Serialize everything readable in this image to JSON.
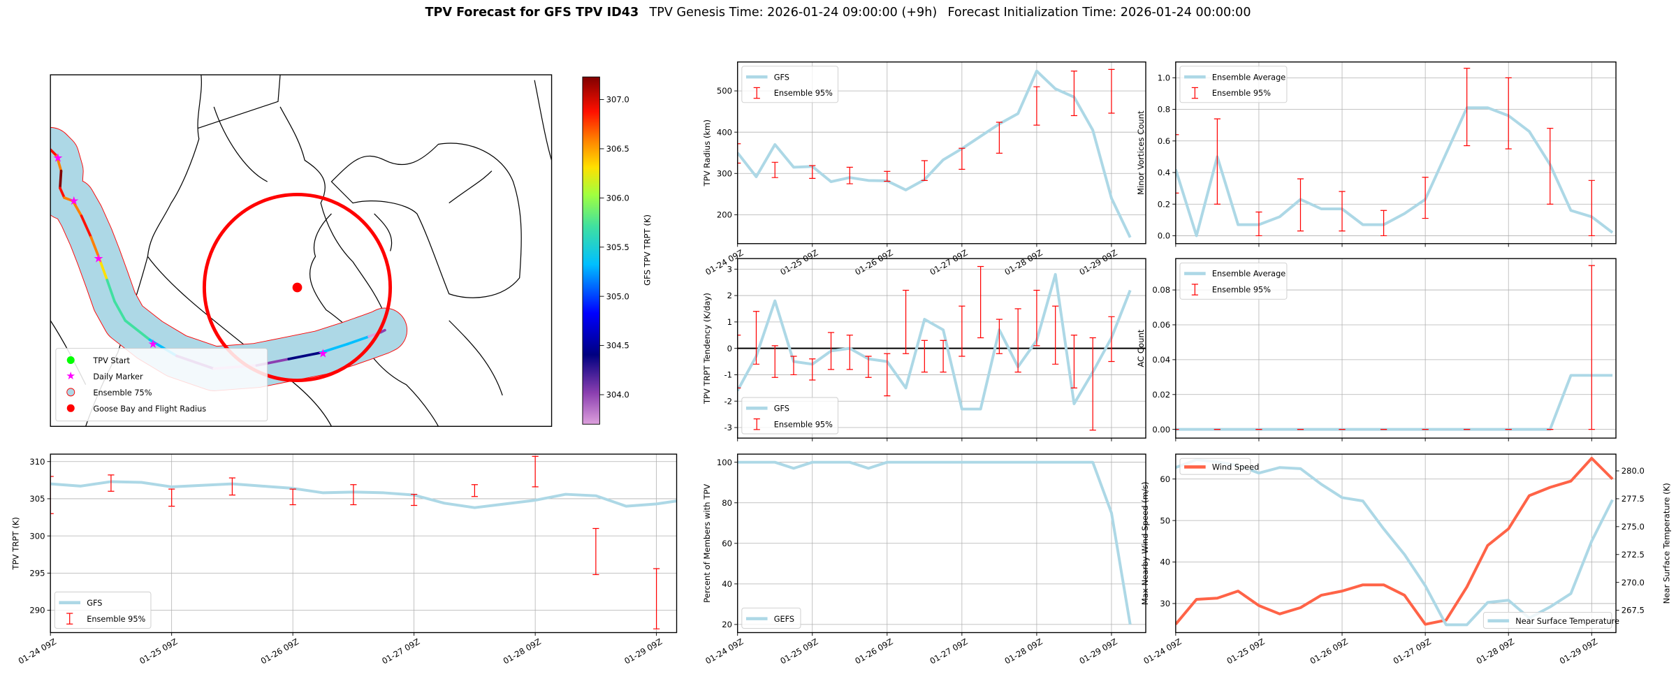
{
  "title": {
    "bold": "TPV Forecast for GFS TPV ID43",
    "genesis": "TPV Genesis Time: 2026-01-24 09:00:00 (+9h)",
    "init": "Forecast Initialization Time: 2026-01-24 00:00:00"
  },
  "map": {
    "legend": [
      "TPV Start",
      "Daily Marker",
      "Ensemble 75%",
      "Goose Bay and Flight Radius"
    ],
    "colorbar": {
      "label": "GFS TPV TRPT (K)",
      "range": [
        303.7,
        307.23
      ],
      "ticks": [
        "304.0",
        "304.5",
        "305.0",
        "305.5",
        "306.0",
        "306.5",
        "307.0"
      ]
    }
  },
  "colors": {
    "gfs": "#add8e6",
    "ens": "#ff0000",
    "wind": "#ff6347",
    "temp_axis": "#4169e1"
  },
  "chart_data": [
    {
      "id": "radius",
      "type": "line",
      "ylabel": "TPV Radius (km)",
      "ylim": [
        130,
        570
      ],
      "yticks": [
        200,
        300,
        400,
        500
      ],
      "x_hours": [
        0,
        6,
        12,
        18,
        24,
        30,
        36,
        42,
        48,
        54,
        60,
        66,
        72,
        78,
        84,
        90,
        96,
        102,
        108,
        114,
        120,
        126
      ],
      "xticks": [
        0,
        24,
        48,
        72,
        96,
        120
      ],
      "xticklabels": [
        "01-24 09Z",
        "01-25 09Z",
        "01-26 09Z",
        "01-27 09Z",
        "01-28 09Z",
        "01-29 09Z"
      ],
      "series": [
        {
          "name": "GFS",
          "values": [
            350,
            292,
            370,
            315,
            317,
            280,
            290,
            283,
            282,
            260,
            285,
            333,
            360,
            390,
            420,
            445,
            548,
            505,
            485,
            405,
            240,
            145
          ]
        }
      ],
      "errorbars": {
        "name": "Ensemble 95%",
        "x": [
          0,
          12,
          24,
          36,
          48,
          60,
          72,
          84,
          96,
          108,
          120
        ],
        "low": [
          325,
          290,
          288,
          275,
          281,
          283,
          310,
          349,
          417,
          440,
          446
        ],
        "high": [
          372,
          327,
          319,
          315,
          305,
          331,
          361,
          424,
          510,
          548,
          552
        ]
      },
      "legend_loc": "upper-left"
    },
    {
      "id": "tendency",
      "type": "line",
      "ylabel": "TPV TRPT Tendency (K/day)",
      "ylim": [
        -3.4,
        3.4
      ],
      "yticks": [
        -3,
        -2,
        -1,
        0,
        1,
        2,
        3
      ],
      "hline": 0,
      "x_hours": [
        0,
        6,
        12,
        18,
        24,
        30,
        36,
        42,
        48,
        54,
        60,
        66,
        72,
        78,
        84,
        90,
        96,
        102,
        108,
        114,
        120,
        126
      ],
      "series": [
        {
          "name": "GFS",
          "values": [
            -1.6,
            -0.3,
            1.8,
            -0.5,
            -0.6,
            -0.1,
            0,
            -0.4,
            -0.5,
            -1.5,
            1.1,
            0.7,
            -2.3,
            -2.3,
            0.7,
            -0.7,
            0.3,
            2.8,
            -2.1,
            -0.9,
            0.4,
            2.2
          ]
        }
      ],
      "errorbars": {
        "name": "Ensemble 95%",
        "x": [
          0,
          6,
          12,
          18,
          24,
          30,
          36,
          42,
          48,
          54,
          60,
          66,
          72,
          78,
          84,
          90,
          96,
          102,
          108,
          114,
          120
        ],
        "low": [
          -1.5,
          -0.6,
          -1.1,
          -1.0,
          -1.2,
          -0.8,
          -0.8,
          -1.1,
          -1.8,
          -0.2,
          -0.9,
          -0.9,
          -0.3,
          0.4,
          -0.2,
          -0.9,
          0.1,
          -0.6,
          -1.5,
          -3.1,
          -0.5
        ],
        "high": [
          0.5,
          1.4,
          0.1,
          -0.3,
          -0.4,
          0.6,
          0.5,
          -0.3,
          -0.2,
          2.2,
          0.3,
          0.3,
          1.6,
          3.1,
          1.1,
          1.5,
          2.2,
          1.6,
          0.5,
          0.4,
          1.2
        ]
      },
      "legend_loc": "lower-left"
    },
    {
      "id": "percent",
      "type": "line",
      "ylabel": "Percent of Members with TPV",
      "ylim": [
        16,
        104
      ],
      "yticks": [
        20,
        40,
        60,
        80,
        100
      ],
      "x_hours": [
        0,
        6,
        12,
        18,
        24,
        30,
        36,
        42,
        48,
        54,
        60,
        66,
        72,
        78,
        84,
        90,
        96,
        102,
        108,
        114,
        120,
        126
      ],
      "xticks": [
        0,
        24,
        48,
        72,
        96,
        120
      ],
      "xticklabels": [
        "01-24 09Z",
        "01-25 09Z",
        "01-26 09Z",
        "01-27 09Z",
        "01-28 09Z",
        "01-29 09Z"
      ],
      "series": [
        {
          "name": "GEFS",
          "values": [
            100,
            100,
            100,
            97,
            100,
            100,
            100,
            97,
            100,
            100,
            100,
            100,
            100,
            100,
            100,
            100,
            100,
            100,
            100,
            100,
            75,
            20
          ]
        }
      ],
      "legend_loc": "lower-left"
    },
    {
      "id": "trpt",
      "type": "line",
      "ylabel": "TPV TRPT (K)",
      "ylim": [
        287,
        311
      ],
      "yticks": [
        290,
        295,
        300,
        305,
        310
      ],
      "x_hours": [
        0,
        6,
        12,
        18,
        24,
        30,
        36,
        42,
        48,
        54,
        60,
        66,
        72,
        78,
        84,
        90,
        96,
        102,
        108,
        114,
        120,
        126
      ],
      "xticks": [
        0,
        24,
        48,
        72,
        96,
        120
      ],
      "xticklabels": [
        "01-24 09Z",
        "01-25 09Z",
        "01-26 09Z",
        "01-27 09Z",
        "01-28 09Z",
        "01-29 09Z"
      ],
      "series": [
        {
          "name": "GFS",
          "values": [
            307,
            306.7,
            307.3,
            307.2,
            306.6,
            306.8,
            307,
            306.7,
            306.4,
            305.8,
            305.9,
            305.8,
            305.5,
            304.4,
            303.8,
            304.3,
            304.8,
            305.6,
            305.4,
            304,
            304.3,
            304.9
          ]
        }
      ],
      "errorbars": {
        "name": "Ensemble 95%",
        "x": [
          0,
          12,
          24,
          36,
          48,
          60,
          72,
          84,
          96,
          108,
          120
        ],
        "low": [
          303,
          306,
          304,
          305.5,
          304.2,
          304.2,
          304.1,
          305.3,
          306.6,
          294.8,
          287.5
        ],
        "high": [
          308,
          308.2,
          306.3,
          307.8,
          306.3,
          306.9,
          305.6,
          306.9,
          310.7,
          301,
          295.6
        ]
      },
      "legend_loc": "lower-left"
    },
    {
      "id": "minor",
      "type": "line",
      "ylabel": "Minor Vortices Count",
      "ylim": [
        -0.05,
        1.1
      ],
      "yticks": [
        "0.0",
        "0.2",
        "0.4",
        "0.6",
        "0.8",
        "1.0"
      ],
      "x_hours": [
        0,
        6,
        12,
        18,
        24,
        30,
        36,
        42,
        48,
        54,
        60,
        66,
        72,
        78,
        84,
        90,
        96,
        102,
        108,
        114,
        120,
        126
      ],
      "series": [
        {
          "name": "Ensemble Average",
          "values": [
            0.42,
            0.0,
            0.5,
            0.07,
            0.07,
            0.12,
            0.23,
            0.17,
            0.17,
            0.07,
            0.07,
            0.14,
            0.23,
            0.52,
            0.81,
            0.81,
            0.76,
            0.66,
            0.45,
            0.16,
            0.12,
            0.02
          ]
        }
      ],
      "errorbars": {
        "name": "Ensemble 95%",
        "x": [
          0,
          12,
          24,
          36,
          48,
          60,
          72,
          84,
          96,
          108,
          120
        ],
        "low": [
          0.27,
          0.2,
          0,
          0.03,
          0.03,
          0,
          0.11,
          0.57,
          0.55,
          0.2,
          0
        ],
        "high": [
          0.64,
          0.74,
          0.15,
          0.36,
          0.28,
          0.16,
          0.37,
          1.06,
          1.0,
          0.68,
          0.35
        ]
      },
      "legend_loc": "upper-left"
    },
    {
      "id": "ac",
      "type": "line",
      "ylabel": "AC Count",
      "ylim": [
        -0.005,
        0.098
      ],
      "yticks": [
        "0.00",
        "0.02",
        "0.04",
        "0.06",
        "0.08"
      ],
      "x_hours": [
        0,
        6,
        12,
        18,
        24,
        30,
        36,
        42,
        48,
        54,
        60,
        66,
        72,
        78,
        84,
        90,
        96,
        102,
        108,
        114,
        120,
        126
      ],
      "series": [
        {
          "name": "Ensemble Average",
          "values": [
            0,
            0,
            0,
            0,
            0,
            0,
            0,
            0,
            0,
            0,
            0,
            0,
            0,
            0,
            0,
            0,
            0,
            0,
            0,
            0.031,
            0.031,
            0.031
          ]
        }
      ],
      "errorbars": {
        "name": "Ensemble 95%",
        "x": [
          0,
          12,
          24,
          36,
          48,
          60,
          72,
          84,
          96,
          108,
          120
        ],
        "low": [
          0,
          0,
          0,
          0,
          0,
          0,
          0,
          0,
          0,
          0,
          0
        ],
        "high": [
          0,
          0,
          0,
          0,
          0,
          0,
          0,
          0,
          0,
          0,
          0.094
        ]
      },
      "legend_loc": "upper-left"
    },
    {
      "id": "wind",
      "type": "line",
      "ylabel": "Max Nearby Wind Speed (m/s)",
      "ylim": [
        23,
        66
      ],
      "yticks": [
        30,
        40,
        50,
        60
      ],
      "y2label": "Near Surface Temperature (K)",
      "y2lim": [
        265.5,
        281.5
      ],
      "y2ticks": [
        "267.5",
        "270.0",
        "272.5",
        "275.0",
        "277.5",
        "280.0"
      ],
      "x_hours": [
        0,
        6,
        12,
        18,
        24,
        30,
        36,
        42,
        48,
        54,
        60,
        66,
        72,
        78,
        84,
        90,
        96,
        102,
        108,
        114,
        120,
        126
      ],
      "xticks": [
        0,
        24,
        48,
        72,
        96,
        120
      ],
      "xticklabels": [
        "01-24 09Z",
        "01-25 09Z",
        "01-26 09Z",
        "01-27 09Z",
        "01-28 09Z",
        "01-29 09Z"
      ],
      "series": [
        {
          "name": "Wind Speed",
          "axis": "left",
          "values": [
            25,
            31,
            31.3,
            33,
            29.5,
            27.5,
            29,
            32,
            33,
            34.5,
            34.5,
            32,
            25,
            26,
            34,
            44,
            48,
            56,
            58,
            59.5,
            65,
            60
          ]
        },
        {
          "name": "Near Surface Temperature",
          "axis": "right",
          "values": [
            280.3,
            281,
            280.8,
            280.5,
            279.8,
            280.3,
            280.2,
            278.8,
            277.6,
            277.3,
            274.8,
            272.5,
            269.7,
            266.2,
            266.2,
            268.2,
            268.4,
            266.8,
            267.8,
            269,
            273.7,
            277.4
          ]
        }
      ],
      "legend_loc": "split"
    }
  ]
}
